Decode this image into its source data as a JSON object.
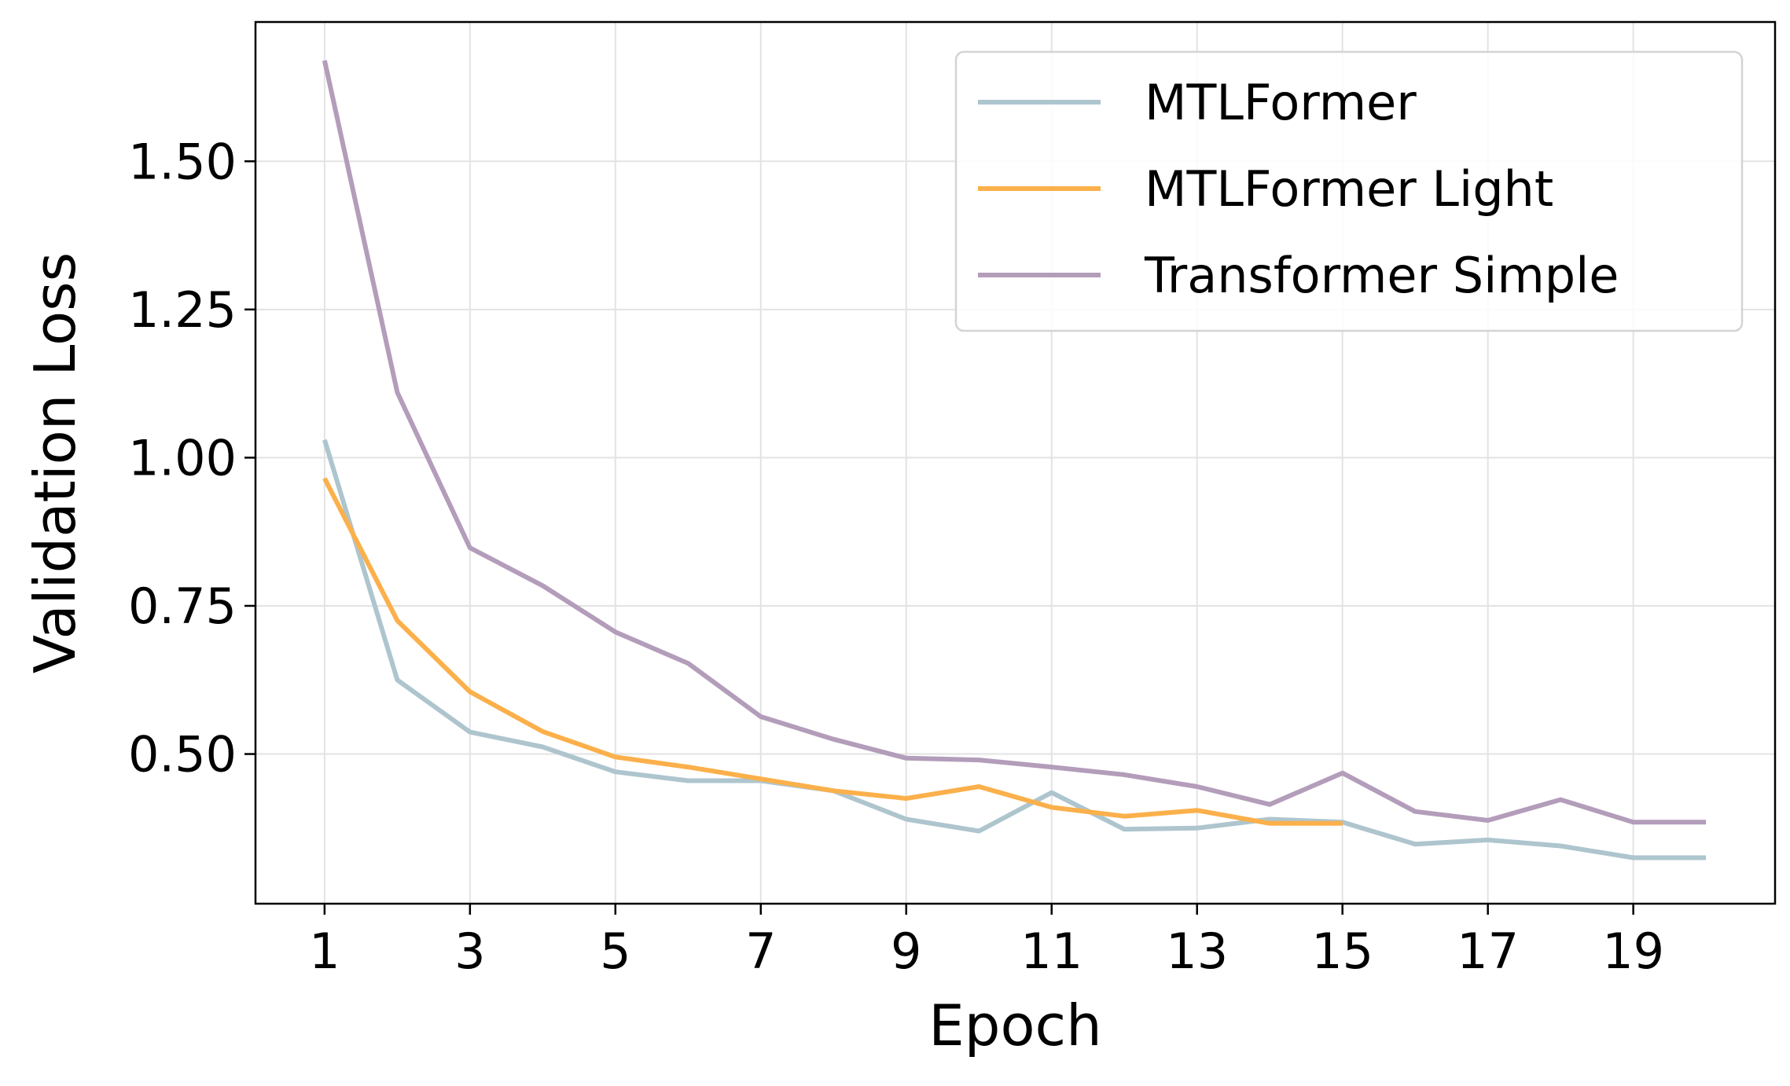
{
  "chart_data": {
    "type": "line",
    "xlabel": "Epoch",
    "ylabel": "Validation Loss",
    "x": [
      1,
      2,
      3,
      4,
      5,
      6,
      7,
      8,
      9,
      10,
      11,
      12,
      13,
      14,
      15,
      16,
      17,
      18,
      19,
      20
    ],
    "xlim": [
      0.05,
      20.95
    ],
    "ylim": [
      0.2475,
      1.735
    ],
    "x_ticks": [
      1,
      3,
      5,
      7,
      9,
      11,
      13,
      15,
      17,
      19
    ],
    "x_tick_labels": [
      "1",
      "3",
      "5",
      "7",
      "9",
      "11",
      "13",
      "15",
      "17",
      "19"
    ],
    "y_ticks": [
      0.5,
      0.75,
      1.0,
      1.25,
      1.5
    ],
    "y_tick_labels": [
      "0.50",
      "0.75",
      "1.00",
      "1.25",
      "1.50"
    ],
    "grid": true,
    "legend_position": "top-right",
    "series": [
      {
        "name": "MTLFormer",
        "color": "#aec5ce",
        "values": [
          1.03,
          0.625,
          0.537,
          0.512,
          0.47,
          0.455,
          0.455,
          0.438,
          0.39,
          0.37,
          0.435,
          0.373,
          0.375,
          0.39,
          0.385,
          0.348,
          0.355,
          0.345,
          0.325,
          0.325
        ]
      },
      {
        "name": "MTLFormer Light",
        "color": "#fbb04b",
        "values": [
          0.965,
          0.725,
          0.605,
          0.538,
          0.495,
          0.478,
          0.458,
          0.438,
          0.425,
          0.445,
          0.41,
          0.395,
          0.405,
          0.383,
          0.383,
          null,
          null,
          null,
          null,
          null
        ]
      },
      {
        "name": "Transformer Simple",
        "color": "#b39dba",
        "values": [
          1.67,
          1.11,
          0.848,
          0.784,
          0.706,
          0.653,
          0.563,
          0.525,
          0.493,
          0.49,
          0.478,
          0.465,
          0.445,
          0.415,
          0.468,
          0.403,
          0.388,
          0.423,
          0.385,
          0.385
        ]
      }
    ]
  }
}
